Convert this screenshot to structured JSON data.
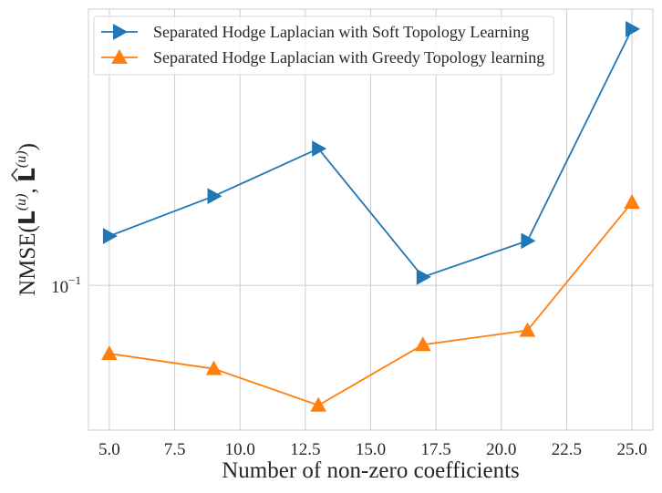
{
  "chart_data": {
    "type": "line",
    "xlabel": "Number of non-zero coefficients",
    "ylabel": {
      "prefix": "NMSE(",
      "arg1_base": "L",
      "arg1_sup": "(u)",
      "separator": ", ",
      "arg2_base": "L",
      "arg2_sup": "(u)",
      "suffix": ")"
    },
    "yscale": "log",
    "xlim": [
      4.2,
      25.8
    ],
    "ylim": [
      0.06,
      0.265
    ],
    "x_ticks": [
      5.0,
      7.5,
      10.0,
      12.5,
      15.0,
      17.5,
      20.0,
      22.5,
      25.0
    ],
    "x_tick_labels": [
      "5.0",
      "7.5",
      "10.0",
      "12.5",
      "15.0",
      "17.5",
      "20.0",
      "22.5",
      "25.0"
    ],
    "y_ticks": [
      0.1
    ],
    "y_tick_labels": [
      {
        "base": "10",
        "exp": "−1"
      }
    ],
    "grid": true,
    "legend_position": "top-left",
    "series": [
      {
        "name": "Separated Hodge Laplacian with Soft Topology Learning",
        "color": "#1f77b4",
        "marker": "triangle-right",
        "x": [
          5,
          9,
          13,
          17,
          21,
          25
        ],
        "y": [
          0.119,
          0.137,
          0.162,
          0.103,
          0.117,
          0.247
        ]
      },
      {
        "name": "Separated Hodge Laplacian with Greedy Topology learning",
        "color": "#ff7f0e",
        "marker": "triangle-up",
        "x": [
          5,
          9,
          13,
          17,
          21,
          25
        ],
        "y": [
          0.0786,
          0.0745,
          0.0655,
          0.0811,
          0.0853,
          0.134
        ]
      }
    ]
  }
}
